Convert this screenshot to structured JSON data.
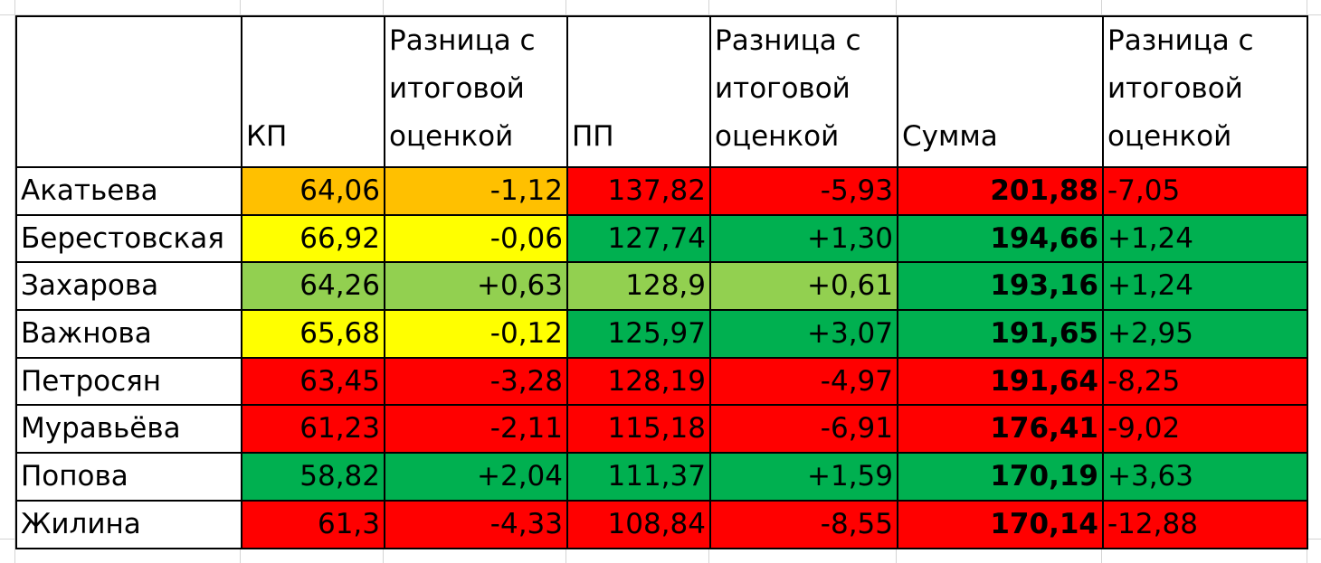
{
  "columns": {
    "name": "",
    "kp": "КП",
    "diff_kp": "Разница с итоговой оценкой",
    "pp": "ПП",
    "diff_pp": "Разница с итоговой оценкой",
    "sum": "Сумма",
    "diff_sum": "Разница с итоговой оценкой"
  },
  "colors": {
    "red": "#ff0000",
    "orange": "#ffc000",
    "yellow": "#ffff00",
    "light_green": "#92d050",
    "green": "#00b050"
  },
  "rows": [
    {
      "name": "Акатьева",
      "kp": "64,06",
      "diff_kp": "-1,12",
      "pp": "137,82",
      "diff_pp": "-5,93",
      "sum": "201,88",
      "diff_sum": "-7,05",
      "kp_color": "orange",
      "pp_color": "red",
      "sum_color": "red"
    },
    {
      "name": "Берестовская",
      "kp": "66,92",
      "diff_kp": "-0,06",
      "pp": "127,74",
      "diff_pp": "+1,30",
      "sum": "194,66",
      "diff_sum": "+1,24",
      "kp_color": "yellow",
      "pp_color": "green",
      "sum_color": "green"
    },
    {
      "name": "Захарова",
      "kp": "64,26",
      "diff_kp": "+0,63",
      "pp": "128,9",
      "diff_pp": "+0,61",
      "sum": "193,16",
      "diff_sum": "+1,24",
      "kp_color": "lgreen",
      "pp_color": "lgreen",
      "sum_color": "green"
    },
    {
      "name": "Важнова",
      "kp": "65,68",
      "diff_kp": "-0,12",
      "pp": "125,97",
      "diff_pp": "+3,07",
      "sum": "191,65",
      "diff_sum": "+2,95",
      "kp_color": "yellow",
      "pp_color": "green",
      "sum_color": "green"
    },
    {
      "name": "Петросян",
      "kp": "63,45",
      "diff_kp": "-3,28",
      "pp": "128,19",
      "diff_pp": "-4,97",
      "sum": "191,64",
      "diff_sum": "-8,25",
      "kp_color": "red",
      "pp_color": "red",
      "sum_color": "red"
    },
    {
      "name": "Муравьёва",
      "kp": "61,23",
      "diff_kp": "-2,11",
      "pp": "115,18",
      "diff_pp": "-6,91",
      "sum": "176,41",
      "diff_sum": "-9,02",
      "kp_color": "red",
      "pp_color": "red",
      "sum_color": "red"
    },
    {
      "name": "Попова",
      "kp": "58,82",
      "diff_kp": "+2,04",
      "pp": "111,37",
      "diff_pp": "+1,59",
      "sum": "170,19",
      "diff_sum": "+3,63",
      "kp_color": "green",
      "pp_color": "green",
      "sum_color": "green"
    },
    {
      "name": "Жилина",
      "kp": "61,3",
      "diff_kp": "-4,33",
      "pp": "108,84",
      "diff_pp": "-8,55",
      "sum": "170,14",
      "diff_sum": "-12,88",
      "kp_color": "red",
      "pp_color": "red",
      "sum_color": "red"
    }
  ]
}
